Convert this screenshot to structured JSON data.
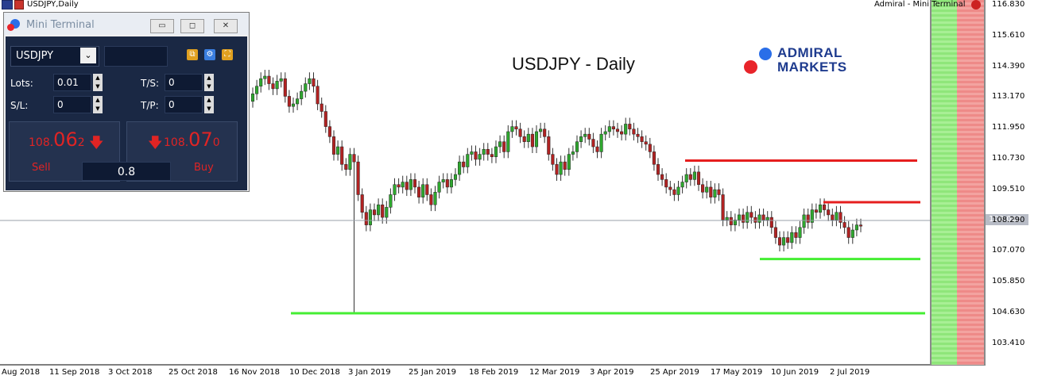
{
  "window": {
    "title": "USDJPY,Daily",
    "right_label": "Admiral - Mini Terminal"
  },
  "chart": {
    "title": "USDJPY - Daily",
    "logo_line1": "ADMIRAL",
    "logo_line2": "MARKETS",
    "current_price": "108.062",
    "price_labels": [
      "116.830",
      "115.610",
      "114.390",
      "113.170",
      "111.950",
      "110.730",
      "109.510",
      "108.290",
      "107.070",
      "105.850",
      "104.630",
      "103.410"
    ],
    "time_labels": [
      "Aug 2018",
      "11 Sep 2018",
      "3 Oct 2018",
      "25 Oct 2018",
      "16 Nov 2018",
      "10 Dec 2018",
      "3 Jan 2019",
      "25 Jan 2019",
      "18 Feb 2019",
      "12 Mar 2019",
      "3 Apr 2019",
      "25 Apr 2019",
      "17 May 2019",
      "10 Jun 2019",
      "2 Jul 2019"
    ],
    "colors": {
      "up": "#2ea82e",
      "down": "#b22222",
      "resistance": "#e61e1e",
      "support": "#44ee33"
    }
  },
  "chart_data": {
    "type": "candlestick",
    "symbol": "USDJPY",
    "timeframe": "Daily",
    "ylim": [
      102.8,
      117.4
    ],
    "closes": [
      113.3,
      113.6,
      113.9,
      114.0,
      113.7,
      113.5,
      113.8,
      113.9,
      113.2,
      112.8,
      112.9,
      113.1,
      113.4,
      113.7,
      113.9,
      113.6,
      112.9,
      112.6,
      112.0,
      111.6,
      110.9,
      111.2,
      110.5,
      110.3,
      110.9,
      110.6,
      109.3,
      108.6,
      108.1,
      108.7,
      108.5,
      108.9,
      108.4,
      108.8,
      109.3,
      109.7,
      109.6,
      109.8,
      109.5,
      109.9,
      109.6,
      109.2,
      109.7,
      109.3,
      108.9,
      109.4,
      109.8,
      109.9,
      109.6,
      109.9,
      110.1,
      110.6,
      110.4,
      110.9,
      111.0,
      110.7,
      110.9,
      111.1,
      110.9,
      110.8,
      111.2,
      111.4,
      111.0,
      111.8,
      112.0,
      111.9,
      111.6,
      111.4,
      111.7,
      111.2,
      111.8,
      111.9,
      111.6,
      110.9,
      110.5,
      110.1,
      110.6,
      110.3,
      110.9,
      111.0,
      111.4,
      111.6,
      111.7,
      111.5,
      111.2,
      111.0,
      111.7,
      111.8,
      112.0,
      111.9,
      111.8,
      111.7,
      112.1,
      111.9,
      111.7,
      111.6,
      111.4,
      111.3,
      111.0,
      110.5,
      110.1,
      109.9,
      109.6,
      109.5,
      109.3,
      109.6,
      109.8,
      110.1,
      109.9,
      110.2,
      109.7,
      109.4,
      109.6,
      109.2,
      109.5,
      109.3,
      108.3,
      108.4,
      108.1,
      108.3,
      108.5,
      108.2,
      108.6,
      108.4,
      108.2,
      108.5,
      108.3,
      108.4,
      108.0,
      107.6,
      107.3,
      107.6,
      107.4,
      107.8,
      107.6,
      108.0,
      108.5,
      108.2,
      108.7,
      108.6,
      108.9,
      108.7,
      108.5,
      108.3,
      108.6,
      108.2,
      108.0,
      107.6,
      107.9,
      108.1,
      108.06
    ],
    "resistance_lines": [
      110.65,
      109.0
    ],
    "support_lines": [
      106.75,
      104.6
    ],
    "current_price": 108.062
  },
  "mini_terminal": {
    "title": "Mini Terminal",
    "symbol": "USDJPY",
    "lots_label": "Lots:",
    "lots_value": "0.01",
    "sl_label": "S/L:",
    "sl_value": "0",
    "ts_label": "T/S:",
    "ts_value": "0",
    "tp_label": "T/P:",
    "tp_value": "0",
    "sell_price_small": "108.",
    "sell_price_big": "06",
    "sell_price_tail": "2",
    "buy_price_small": "108.",
    "buy_price_big": "07",
    "buy_price_tail": "0",
    "sell_label": "Sell",
    "buy_label": "Buy",
    "volume": "0.8"
  }
}
